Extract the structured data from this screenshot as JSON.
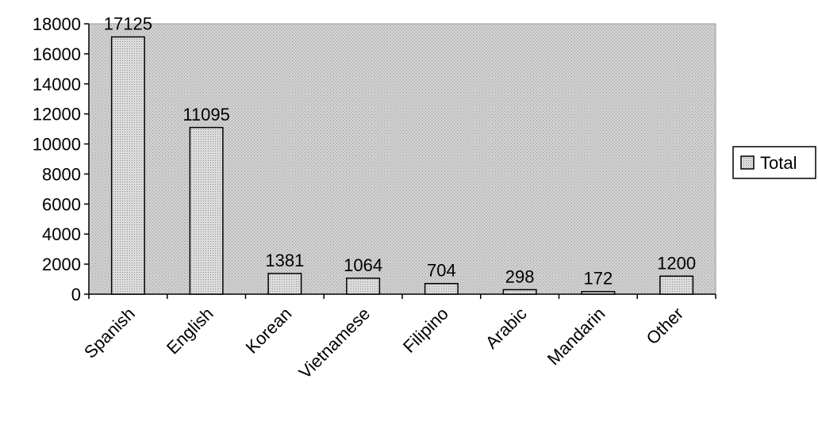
{
  "chart_data": {
    "type": "bar",
    "categories": [
      "Spanish",
      "English",
      "Korean",
      "Vietnamese",
      "Filipino",
      "Arabic",
      "Mandarin",
      "Other"
    ],
    "series": [
      {
        "name": "Total",
        "values": [
          17125,
          11095,
          1381,
          1064,
          704,
          298,
          172,
          1200
        ]
      }
    ],
    "ylim": [
      0,
      18000
    ],
    "yticks": [
      0,
      2000,
      4000,
      6000,
      8000,
      10000,
      12000,
      14000,
      16000,
      18000
    ],
    "legend_position": "right",
    "grid": false,
    "colors": {
      "plot_background": "#c8c8c8",
      "bar_fill": "#d4d4d4",
      "bar_stroke": "#000000"
    }
  }
}
